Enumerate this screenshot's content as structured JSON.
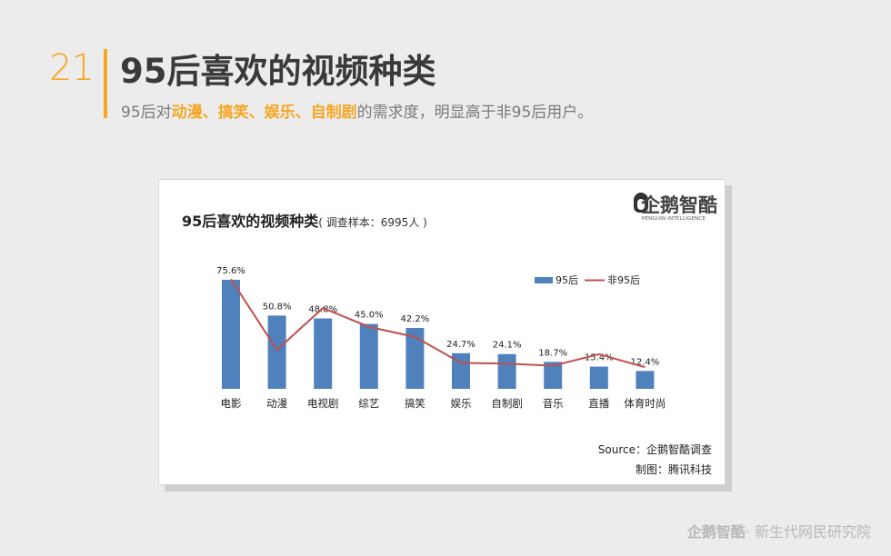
{
  "slide": {
    "number": "21",
    "title": "95后喜欢的视频种类",
    "subtitle_prefix": "95后对",
    "subtitle_highlight": "动漫、搞笑、娱乐、自制剧",
    "subtitle_suffix": "的需求度，明显高于非95后用户。"
  },
  "card": {
    "title": "95后喜欢的视频种类",
    "title_note": "( 调查样本：6995人 )",
    "logo_text": "企鹅智酷",
    "logo_sub": "PENGUIN INTELLIGENCE",
    "source": "Source：企鹅智酷调查",
    "credit": "制图：腾讯科技"
  },
  "footer": {
    "brand": "企鹅智酷",
    "text": "· 新生代网民研究院"
  },
  "colors": {
    "bar": "#4f81bd",
    "line": "#c0504d",
    "accent": "#f5a623"
  },
  "chart_data": {
    "type": "bar",
    "categories": [
      "电影",
      "动漫",
      "电视剧",
      "综艺",
      "搞笑",
      "娱乐",
      "自制剧",
      "音乐",
      "直播",
      "体育时尚"
    ],
    "series": [
      {
        "name": "95后",
        "type": "bar",
        "values": [
          75.6,
          50.8,
          48.8,
          45.0,
          42.2,
          24.7,
          24.1,
          18.7,
          15.4,
          12.4
        ],
        "labels": [
          "75.6%",
          "50.8%",
          "48.8%",
          "45.0%",
          "42.2%",
          "24.7%",
          "24.1%",
          "18.7%",
          "15.4%",
          "12.4%"
        ]
      },
      {
        "name": "非95后",
        "type": "line",
        "values": [
          76,
          27,
          56,
          43,
          36,
          18,
          17.5,
          16,
          24,
          15
        ]
      }
    ],
    "ylim": [
      0,
      80
    ],
    "legend": "top-right",
    "grid": false
  }
}
